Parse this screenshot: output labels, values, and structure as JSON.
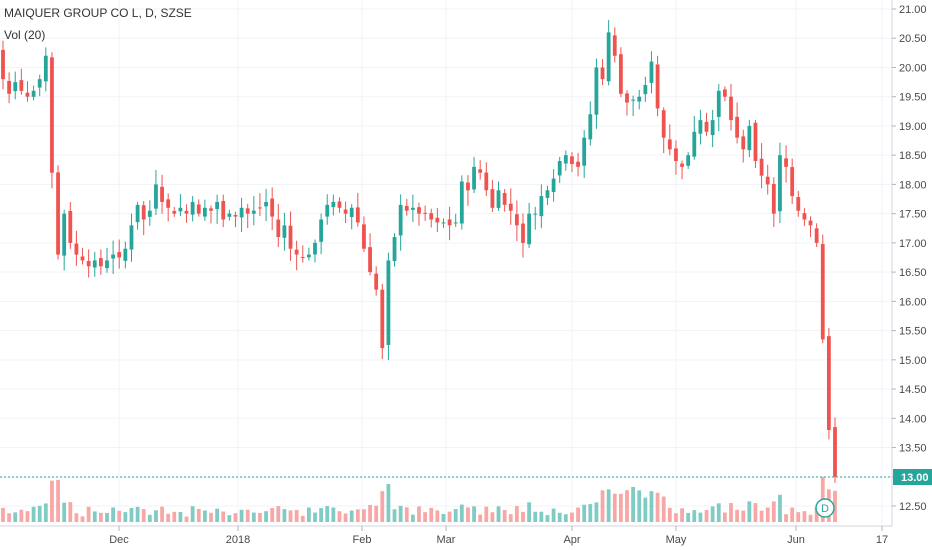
{
  "legend": {
    "title": "MAIQUER GROUP CO L, D, SZSE",
    "volume_label": "Vol (20)"
  },
  "colors": {
    "up": "#26a69a",
    "down": "#ef5350",
    "up_volume": "#80cbc4",
    "down_volume": "#f7a8a6",
    "grid": "#f0f3f8",
    "last_price_line": "#26a69a",
    "badge": "#26a69a"
  },
  "price_axis": {
    "ticks": [
      "21.00",
      "20.50",
      "20.00",
      "19.50",
      "19.00",
      "18.50",
      "18.00",
      "17.50",
      "17.00",
      "16.50",
      "16.00",
      "15.50",
      "15.00",
      "14.50",
      "14.00",
      "13.50",
      "13.00",
      "12.50"
    ],
    "last_price_label": "13.00",
    "range": [
      12.34,
      21.07
    ]
  },
  "time_axis": {
    "labels": [
      "Dec",
      "2018",
      "Feb",
      "Mar",
      "Apr",
      "May",
      "Jun",
      "17"
    ]
  },
  "marker": {
    "label": "D"
  },
  "chart_data": {
    "type": "candlestick",
    "title": "MAIQUER GROUP CO L, D, SZSE",
    "legend": [
      "Vol (20)"
    ],
    "grid": true,
    "price_range": [
      12.34,
      21.07
    ],
    "x_labels": [
      "Dec",
      "2018",
      "Feb",
      "Mar",
      "Apr",
      "May",
      "Jun",
      "17"
    ],
    "last_price": 13.0,
    "close": [
      19.8,
      19.55,
      19.75,
      19.6,
      19.5,
      19.6,
      19.8,
      20.2,
      18.2,
      16.8,
      17.5,
      17.0,
      16.8,
      16.7,
      16.6,
      16.7,
      16.6,
      16.7,
      16.8,
      16.75,
      16.9,
      17.3,
      17.65,
      17.4,
      17.55,
      18.0,
      17.7,
      17.6,
      17.5,
      17.6,
      17.5,
      17.7,
      17.5,
      17.6,
      17.55,
      17.7,
      17.4,
      17.5,
      17.45,
      17.6,
      17.5,
      17.55,
      17.6,
      17.7,
      17.45,
      17.1,
      17.3,
      16.9,
      16.8,
      16.75,
      16.8,
      17.0,
      17.4,
      17.65,
      17.7,
      17.6,
      17.5,
      17.6,
      17.35,
      16.9,
      16.5,
      16.2,
      15.2,
      16.7,
      17.1,
      17.65,
      17.55,
      17.6,
      17.5,
      17.5,
      17.4,
      17.35,
      17.35,
      17.3,
      17.35,
      18.05,
      17.9,
      18.3,
      18.2,
      17.9,
      17.6,
      17.9,
      17.65,
      17.55,
      17.3,
      17.0,
      17.5,
      17.5,
      17.8,
      17.9,
      18.1,
      18.4,
      18.5,
      18.35,
      18.3,
      18.8,
      19.2,
      20.0,
      19.8,
      20.6,
      20.2,
      19.55,
      19.4,
      19.45,
      19.5,
      19.7,
      20.1,
      19.3,
      18.8,
      18.6,
      18.4,
      18.3,
      18.5,
      18.9,
      19.1,
      18.9,
      19.1,
      19.6,
      19.5,
      19.1,
      18.8,
      18.6,
      19.0,
      18.4,
      18.15,
      18.0,
      17.5,
      18.5,
      18.3,
      17.8,
      17.55,
      17.4,
      17.3,
      17.0,
      15.35,
      13.8,
      13.0
    ],
    "volume_scale": "relative (no volume axis printed)",
    "notes": "Values estimated from the price axis; volume bars drawn proportionally."
  }
}
